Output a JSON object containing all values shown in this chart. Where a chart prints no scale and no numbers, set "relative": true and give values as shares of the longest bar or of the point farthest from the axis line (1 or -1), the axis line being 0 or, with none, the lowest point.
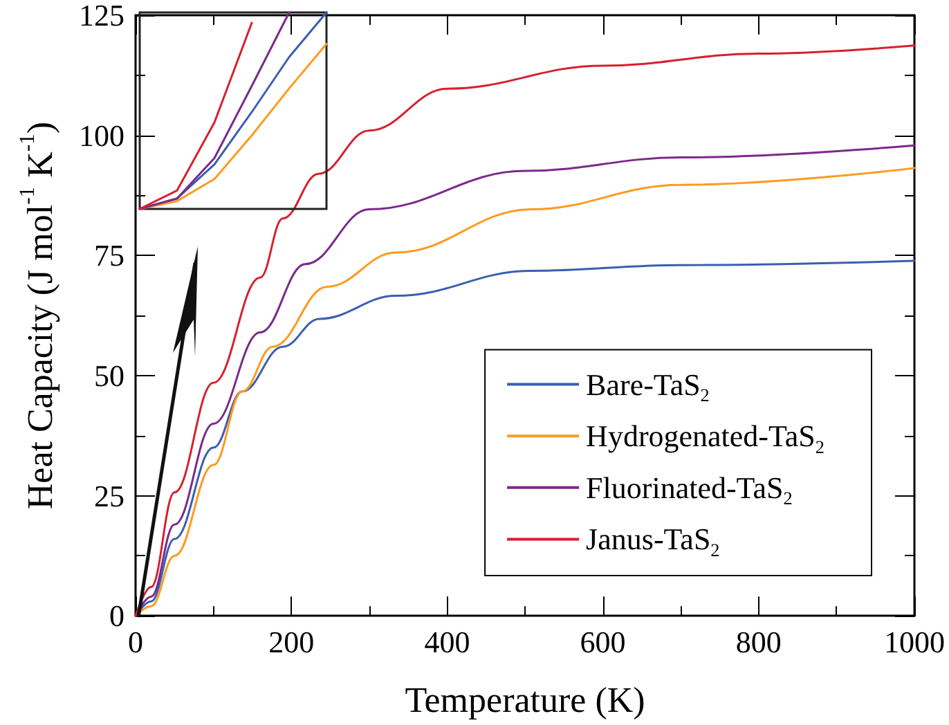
{
  "chart_data": [
    {
      "type": "line",
      "xlabel": "Temperature (K)",
      "ylabel": "Heat Capacity (J mol$^{-1}$ K$^{-1}$)",
      "xlim": [
        0,
        1000
      ],
      "ylim": [
        0,
        125
      ],
      "xticks": [
        0,
        200,
        400,
        600,
        800,
        1000
      ],
      "yticks": [
        0,
        25,
        50,
        75,
        100,
        125
      ],
      "legend": "bottom right",
      "marker": "none",
      "grid": false,
      "series": [
        {
          "name": "Bare-TaS$_{2}$",
          "color": "#3a5fb0",
          "x": [
            0,
            20,
            50,
            100,
            137,
            189,
            236,
            334,
            508,
            700,
            1000
          ],
          "values": [
            0,
            3,
            16,
            35,
            46.7,
            56,
            61.8,
            66.6,
            71.8,
            73,
            73.9
          ]
        },
        {
          "name": "Hydrogenated-TaS$_{2}$",
          "color": "#ff9a1f",
          "x": [
            0,
            20,
            50,
            100,
            137,
            176,
            246,
            334,
            508,
            700,
            1000
          ],
          "values": [
            0,
            2,
            12.5,
            31.4,
            46.7,
            56,
            68.5,
            75.6,
            84.6,
            89.7,
            93.2
          ]
        },
        {
          "name": "Fluorinated-TaS$_{2}$",
          "color": "#7b2a8c",
          "x": [
            0,
            20,
            50,
            100,
            160,
            218,
            300,
            500,
            700,
            1000
          ],
          "values": [
            0,
            4,
            19,
            40,
            59,
            73.2,
            84.6,
            92.6,
            95.4,
            97.9
          ]
        },
        {
          "name": "Janus-TaS$_{2}$",
          "color": "#d6202f",
          "x": [
            0,
            20,
            50,
            100,
            160,
            189,
            235,
            300,
            400,
            600,
            800,
            1000
          ],
          "values": [
            0,
            6,
            25.7,
            48.5,
            70.4,
            82.7,
            92,
            101,
            109.7,
            114.5,
            117,
            118.7
          ]
        }
      ]
    },
    {
      "type": "line",
      "relative": true,
      "categories": [
        null,
        null,
        null,
        null,
        null,
        null
      ],
      "marker": "none",
      "series": [
        {
          "color": "#3a5fb0",
          "values": [
            0,
            0.053,
            0.227,
            0.493,
            0.773,
            1
          ]
        },
        {
          "color": "#ff9a1f",
          "values": [
            0,
            0.04,
            0.152,
            0.374,
            0.613,
            0.84
          ]
        },
        {
          "color": "#7b2a8c",
          "values": [
            0,
            0.053,
            0.259,
            0.626,
            1,
            null
          ]
        },
        {
          "color": "#d6202f",
          "values": [
            0,
            0.094,
            0.44,
            0.947,
            null,
            null
          ]
        }
      ]
    }
  ]
}
